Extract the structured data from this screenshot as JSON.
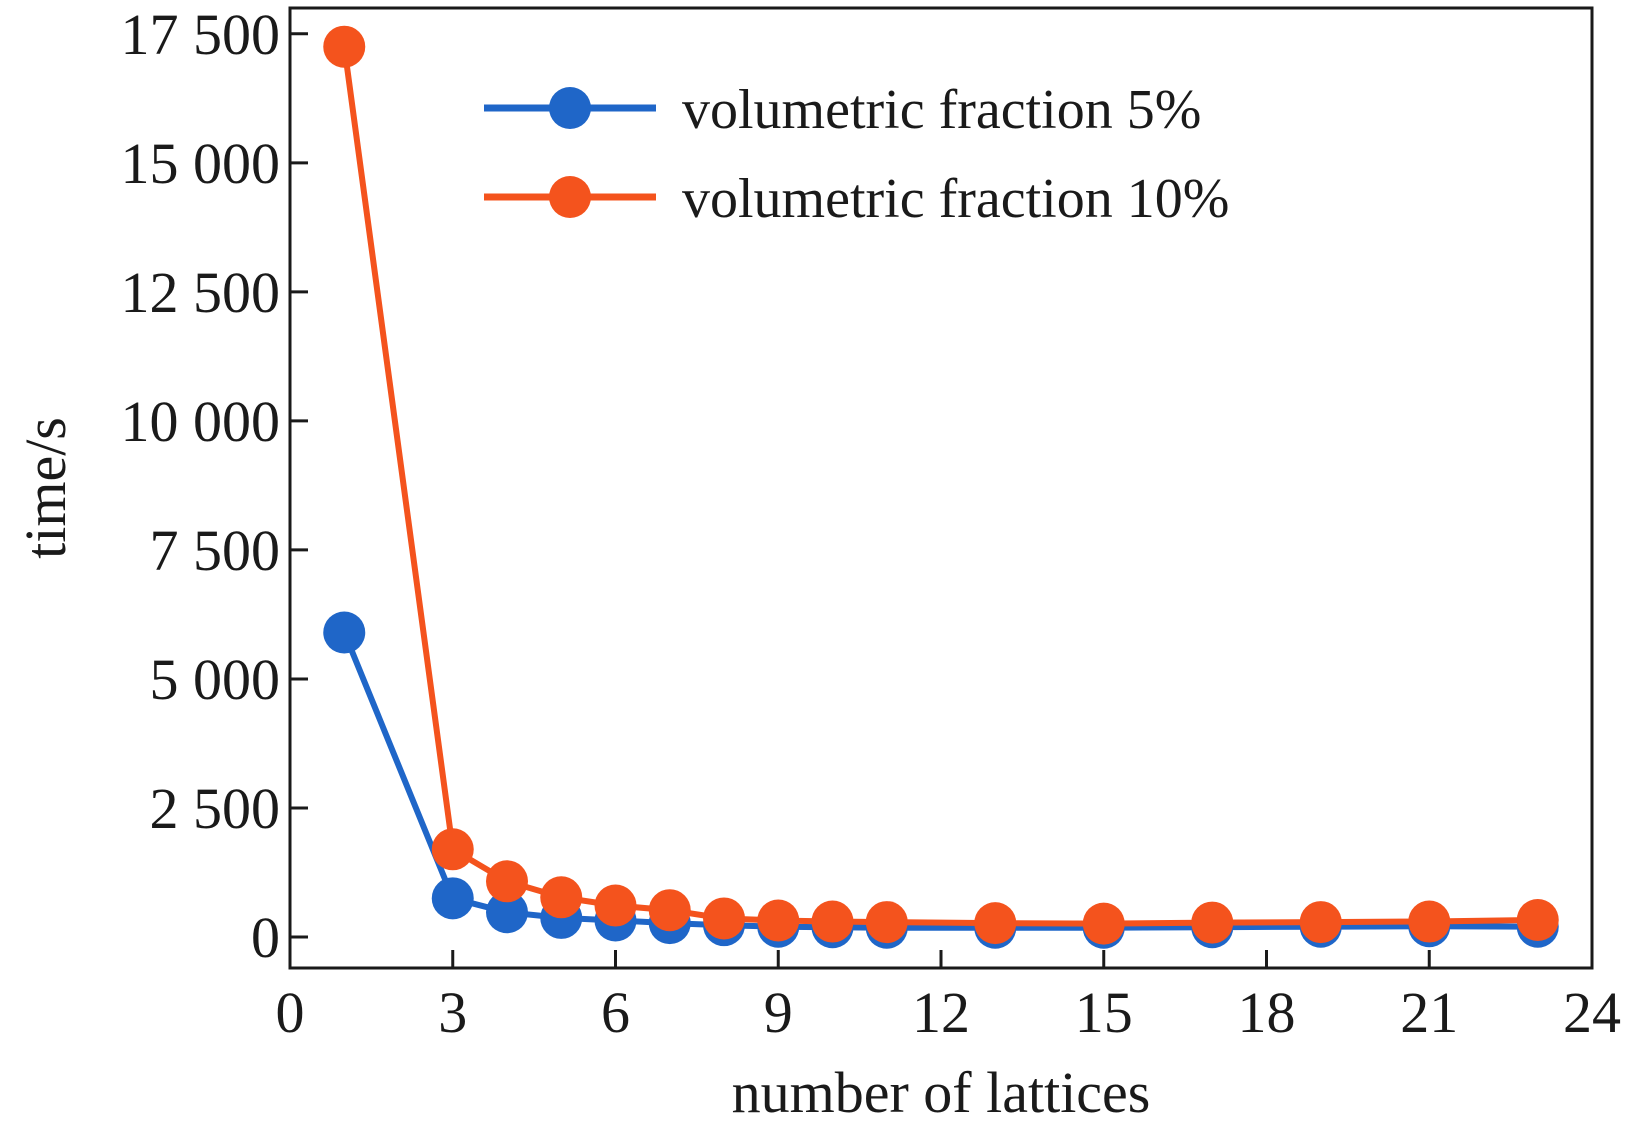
{
  "chart_data": {
    "type": "line",
    "xlabel": "number of lattices",
    "ylabel": "time/s",
    "xlim": [
      0,
      24
    ],
    "ylim": [
      -600,
      18000
    ],
    "xticks": [
      0,
      3,
      6,
      9,
      12,
      15,
      18,
      21,
      24
    ],
    "xtick_labels": [
      "0",
      "3",
      "6",
      "9",
      "12",
      "15",
      "18",
      "21",
      "24"
    ],
    "yticks": [
      0,
      2500,
      5000,
      7500,
      10000,
      12500,
      15000,
      17500
    ],
    "ytick_labels": [
      "0",
      "2 500",
      "5 000",
      "7 500",
      "10 000",
      "12 500",
      "15 000",
      "17 500"
    ],
    "grid": false,
    "legend_position": "top-center",
    "series": [
      {
        "name": "volumetric fraction 5%",
        "color": "#1f66c8",
        "x": [
          1,
          3,
          4,
          5,
          6,
          7,
          8,
          9,
          10,
          11,
          13,
          15,
          17,
          19,
          21,
          23
        ],
        "y": [
          5900,
          750,
          480,
          370,
          320,
          270,
          230,
          200,
          190,
          180,
          180,
          180,
          190,
          200,
          210,
          200
        ]
      },
      {
        "name": "volumetric fraction 10%",
        "color": "#f4531d",
        "x": [
          1,
          3,
          4,
          5,
          6,
          7,
          8,
          9,
          10,
          11,
          13,
          15,
          17,
          19,
          21,
          23
        ],
        "y": [
          17250,
          1700,
          1080,
          770,
          610,
          520,
          360,
          320,
          300,
          290,
          270,
          260,
          280,
          290,
          300,
          330
        ]
      }
    ]
  }
}
